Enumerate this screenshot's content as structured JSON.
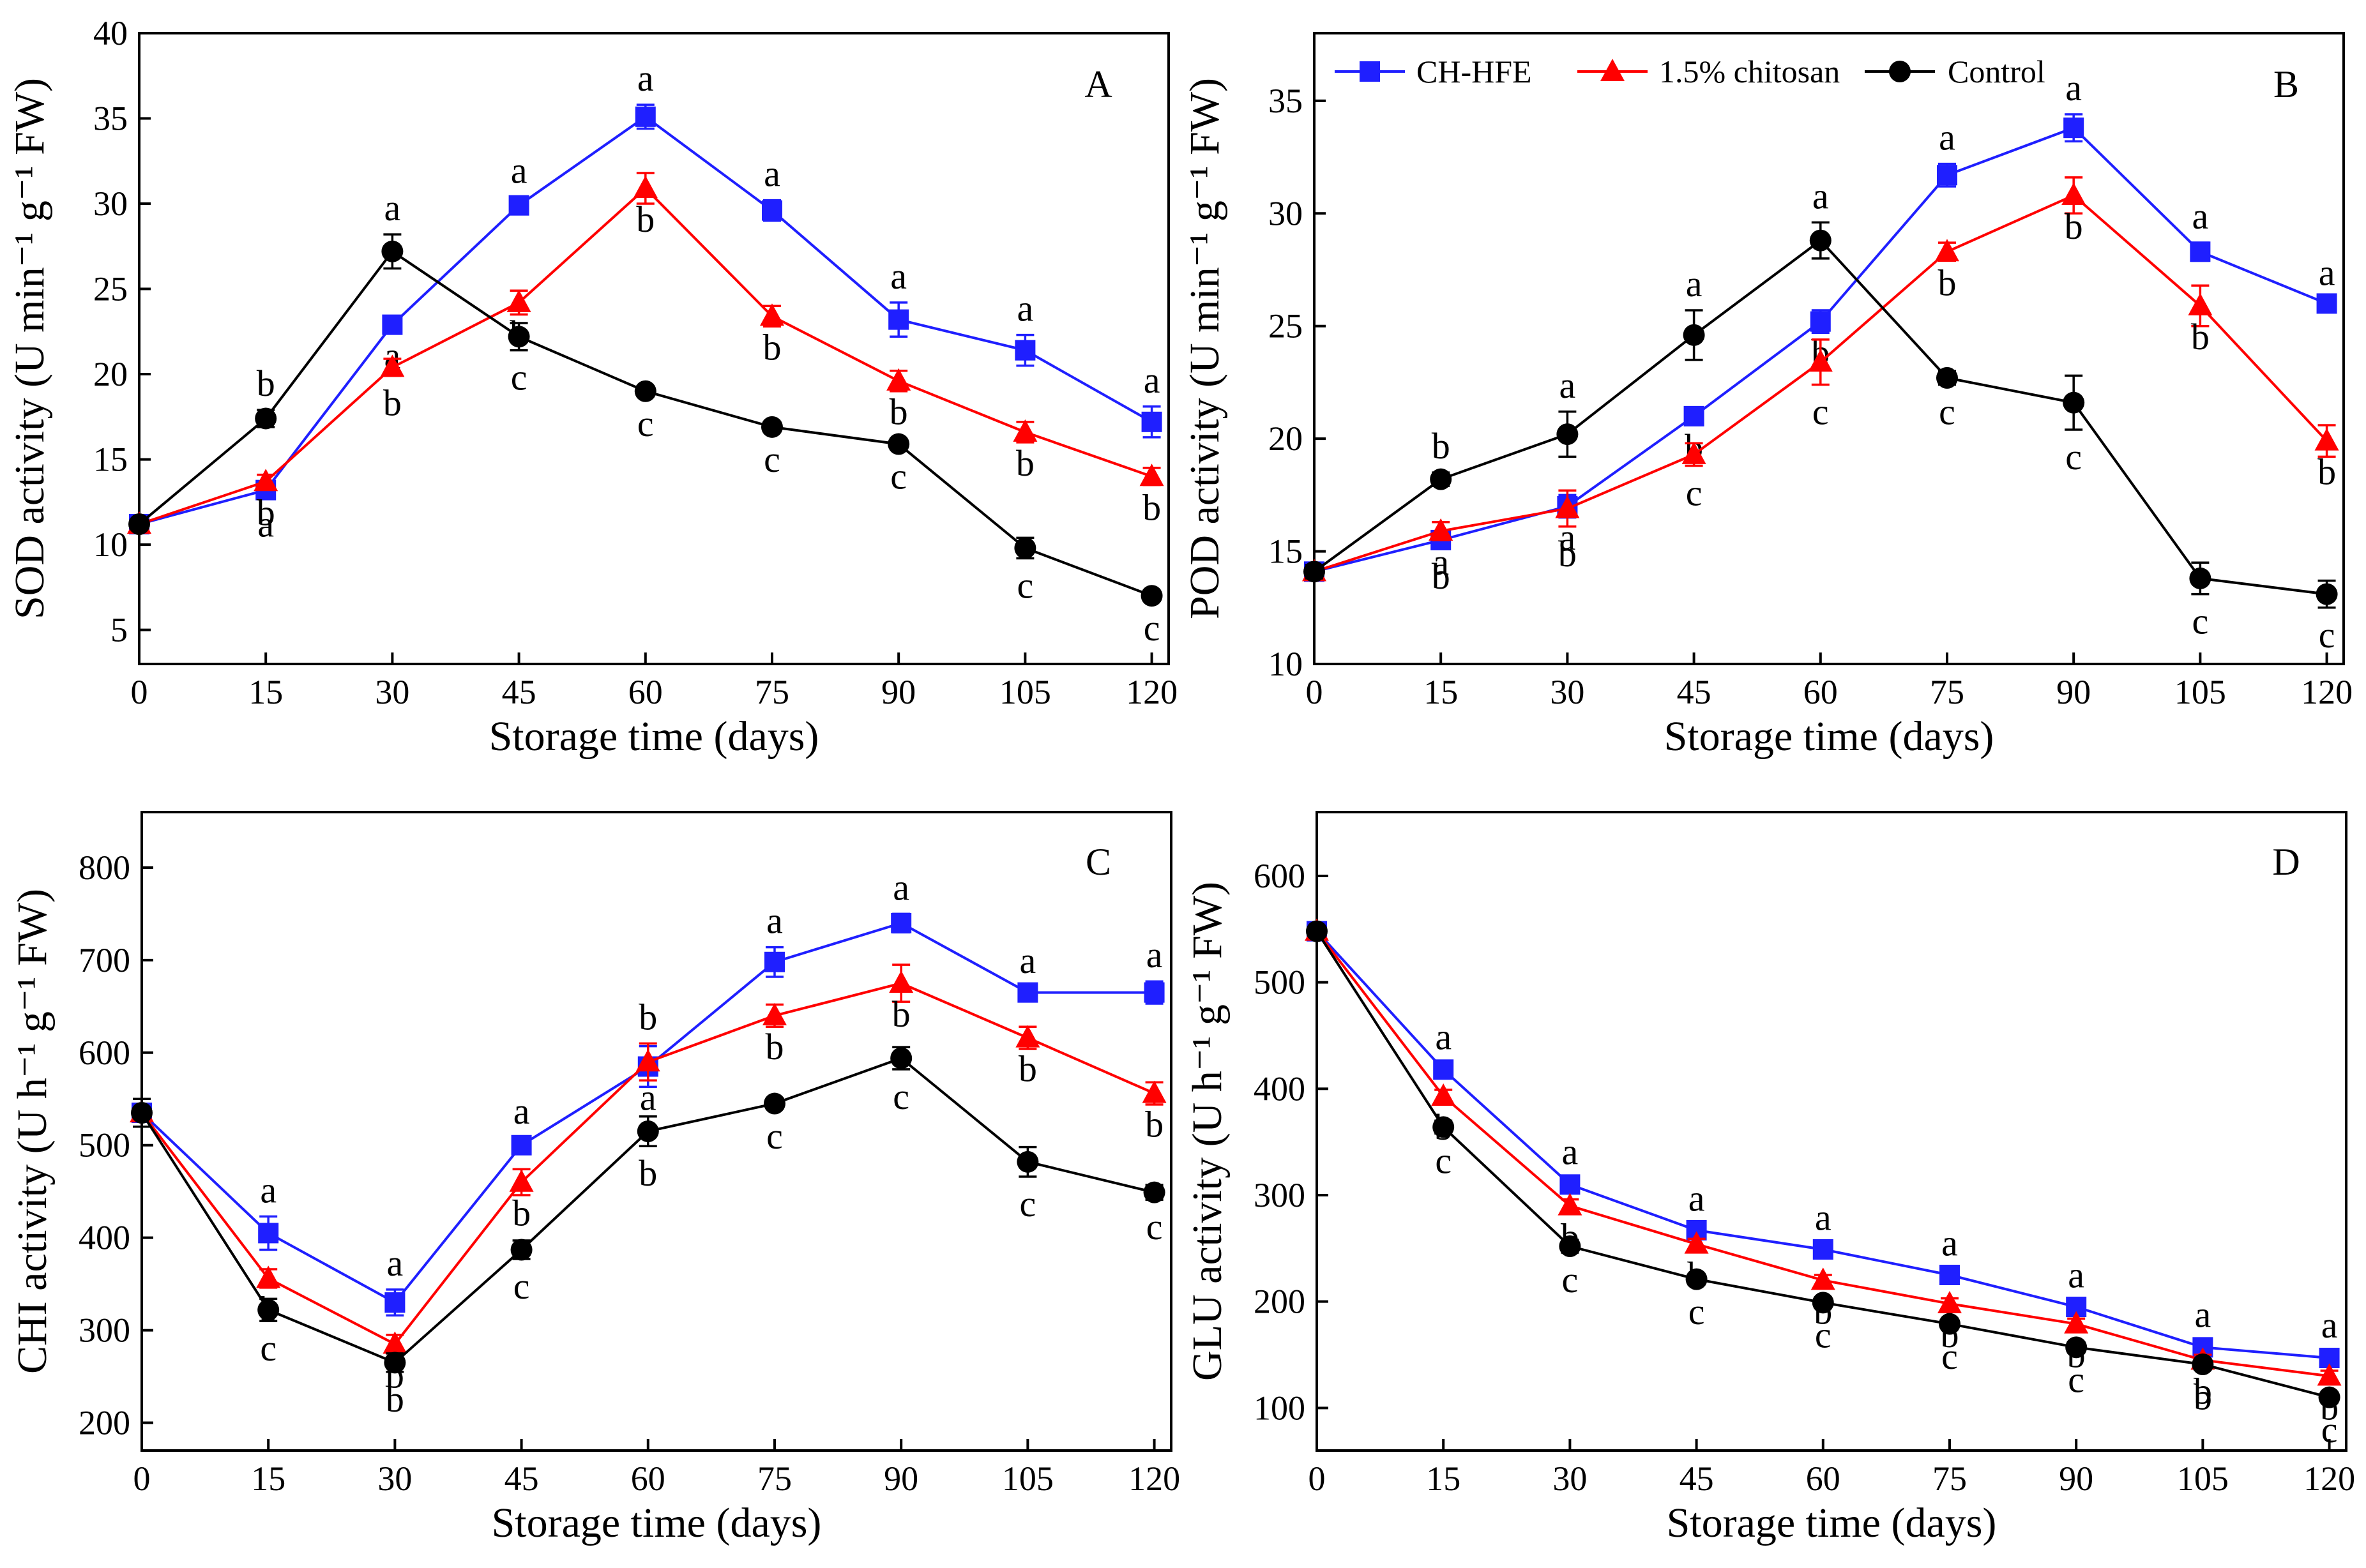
{
  "legend": {
    "entries": [
      {
        "key": "ch_hfe",
        "label": "CH-HFE"
      },
      {
        "key": "chitosan",
        "label": "1.5% chitosan"
      },
      {
        "key": "control",
        "label": "Control"
      }
    ]
  },
  "series_styles": {
    "ch_hfe": {
      "color": "#1f1fff",
      "marker": "square"
    },
    "chitosan": {
      "color": "#ff0000",
      "marker": "triangle"
    },
    "control": {
      "color": "#000000",
      "marker": "circle"
    }
  },
  "chart_data": [
    {
      "type": "line",
      "panel": "A",
      "xlabel": "Storage time (days)",
      "ylabel": "SOD activity (U min⁻¹ g⁻¹ FW)",
      "x": [
        0,
        15,
        30,
        45,
        60,
        75,
        90,
        105,
        120
      ],
      "xlim": [
        0,
        122
      ],
      "ylim": [
        3,
        40
      ],
      "xticks": [
        "0",
        "15",
        "30",
        "45",
        "60",
        "75",
        "90",
        "105",
        "120"
      ],
      "yticks": [
        "5",
        "10",
        "15",
        "20",
        "25",
        "30",
        "35",
        "40"
      ],
      "yticks_values": [
        5,
        10,
        15,
        20,
        25,
        30,
        35,
        40
      ],
      "series": [
        {
          "key": "ch_hfe",
          "name": "CH-HFE",
          "values": [
            11.2,
            13.2,
            22.9,
            29.9,
            35.1,
            29.6,
            23.2,
            21.4,
            17.2
          ],
          "errors": [
            0.3,
            0.4,
            0.5,
            0.5,
            0.7,
            0.6,
            1.0,
            0.9,
            0.9
          ],
          "letters": [
            "",
            "a",
            "a",
            "a",
            "a",
            "a",
            "a",
            "a",
            "a"
          ]
        },
        {
          "key": "chitosan",
          "name": "1.5% chitosan",
          "values": [
            11.2,
            13.7,
            20.4,
            24.2,
            30.9,
            23.4,
            19.6,
            16.6,
            14.0
          ],
          "errors": [
            0.3,
            0.4,
            0.5,
            0.7,
            0.9,
            0.6,
            0.6,
            0.6,
            0.5
          ],
          "letters": [
            "",
            "b",
            "b",
            "b",
            "b",
            "b",
            "b",
            "b",
            "b"
          ]
        },
        {
          "key": "control",
          "name": "Control",
          "values": [
            11.2,
            17.4,
            27.2,
            22.2,
            19.0,
            16.9,
            15.9,
            9.8,
            7.0
          ],
          "errors": [
            0.3,
            0.5,
            1.0,
            0.8,
            0.3,
            0.3,
            0.3,
            0.6,
            0.3
          ],
          "letters": [
            "",
            "b",
            "a",
            "c",
            "c",
            "c",
            "c",
            "c",
            "c"
          ]
        }
      ]
    },
    {
      "type": "line",
      "panel": "B",
      "xlabel": "Storage time (days)",
      "ylabel": "POD activity (U min⁻¹ g⁻¹ FW)",
      "x": [
        0,
        15,
        30,
        45,
        60,
        75,
        90,
        105,
        120
      ],
      "xlim": [
        0,
        122
      ],
      "ylim": [
        10,
        38
      ],
      "xticks": [
        "0",
        "15",
        "30",
        "45",
        "60",
        "75",
        "90",
        "105",
        "120"
      ],
      "yticks": [
        "10",
        "15",
        "20",
        "25",
        "30",
        "35"
      ],
      "yticks_values": [
        10,
        15,
        20,
        25,
        30,
        35
      ],
      "series": [
        {
          "key": "ch_hfe",
          "name": "CH-HFE",
          "values": [
            14.1,
            15.5,
            17.0,
            21.0,
            25.2,
            31.7,
            33.8,
            28.3,
            26.0
          ],
          "errors": [
            0.3,
            0.4,
            0.5,
            0.3,
            0.5,
            0.5,
            0.6,
            0.4,
            0.2
          ],
          "letters": [
            "",
            "b",
            "a",
            "b",
            "b",
            "a",
            "a",
            "a",
            "a"
          ]
        },
        {
          "key": "chitosan",
          "name": "1.5% chitosan",
          "values": [
            14.1,
            15.9,
            16.9,
            19.3,
            23.4,
            28.3,
            30.8,
            25.9,
            19.9
          ],
          "errors": [
            0.3,
            0.4,
            0.8,
            0.5,
            1.0,
            0.4,
            0.8,
            0.9,
            0.7
          ],
          "letters": [
            "",
            "a",
            "b",
            "c",
            "c",
            "b",
            "b",
            "b",
            "b"
          ]
        },
        {
          "key": "control",
          "name": "Control",
          "values": [
            14.1,
            18.2,
            20.2,
            24.6,
            28.8,
            22.7,
            21.6,
            13.8,
            13.1
          ],
          "errors": [
            0.3,
            0.3,
            1.0,
            1.1,
            0.8,
            0.3,
            1.2,
            0.7,
            0.6
          ],
          "letters": [
            "",
            "b",
            "a",
            "a",
            "a",
            "c",
            "c",
            "c",
            "c"
          ]
        }
      ]
    },
    {
      "type": "line",
      "panel": "C",
      "xlabel": "Storage time (days)",
      "ylabel": "CHI activity (U h⁻¹ g⁻¹ FW)",
      "x": [
        0,
        15,
        30,
        45,
        60,
        75,
        90,
        105,
        120
      ],
      "xlim": [
        0,
        122
      ],
      "ylim": [
        170,
        860
      ],
      "xticks": [
        "0",
        "15",
        "30",
        "45",
        "60",
        "75",
        "90",
        "105",
        "120"
      ],
      "yticks": [
        "200",
        "300",
        "400",
        "500",
        "600",
        "700",
        "800"
      ],
      "yticks_values": [
        200,
        300,
        400,
        500,
        600,
        700,
        800
      ],
      "series": [
        {
          "key": "ch_hfe",
          "name": "CH-HFE",
          "values": [
            535,
            405,
            330,
            500,
            585,
            698,
            740,
            665,
            665
          ],
          "errors": [
            15,
            18,
            14,
            8,
            22,
            16,
            10,
            6,
            12
          ],
          "letters": [
            "",
            "a",
            "a",
            "a",
            "a",
            "a",
            "a",
            "a",
            "a"
          ]
        },
        {
          "key": "chitosan",
          "name": "1.5% chitosan",
          "values": [
            535,
            356,
            285,
            460,
            590,
            640,
            675,
            616,
            556
          ],
          "errors": [
            15,
            10,
            10,
            14,
            20,
            12,
            20,
            12,
            12
          ],
          "letters": [
            "",
            "b",
            "b",
            "b",
            "b",
            "b",
            "b",
            "b",
            "b"
          ]
        },
        {
          "key": "control",
          "name": "Control",
          "values": [
            535,
            322,
            265,
            387,
            515,
            545,
            594,
            482,
            449
          ],
          "errors": [
            15,
            12,
            10,
            10,
            16,
            6,
            12,
            16,
            8
          ],
          "letters": [
            "",
            "c",
            "b",
            "c",
            "b",
            "c",
            "c",
            "c",
            "c"
          ]
        }
      ]
    },
    {
      "type": "line",
      "panel": "D",
      "xlabel": "Storage time (days)",
      "ylabel": "GLU activity (U h⁻¹ g⁻¹ FW)",
      "x": [
        0,
        15,
        30,
        45,
        60,
        75,
        90,
        105,
        120
      ],
      "xlim": [
        0,
        122
      ],
      "ylim": [
        60,
        660
      ],
      "xticks": [
        "0",
        "15",
        "30",
        "45",
        "60",
        "75",
        "90",
        "105",
        "120"
      ],
      "yticks": [
        "100",
        "200",
        "300",
        "400",
        "500",
        "600"
      ],
      "yticks_values": [
        100,
        200,
        300,
        400,
        500,
        600
      ],
      "series": [
        {
          "key": "ch_hfe",
          "name": "CH-HFE",
          "values": [
            548,
            418,
            310,
            267,
            249,
            225,
            195,
            157,
            147
          ],
          "errors": [
            5,
            6,
            6,
            5,
            5,
            5,
            5,
            6,
            6
          ],
          "letters": [
            "",
            "a",
            "a",
            "a",
            "a",
            "a",
            "a",
            "a",
            "a"
          ]
        },
        {
          "key": "chitosan",
          "name": "1.5% chitosan",
          "values": [
            548,
            393,
            290,
            254,
            220,
            198,
            179,
            145,
            130
          ],
          "errors": [
            5,
            6,
            6,
            5,
            5,
            5,
            5,
            5,
            5
          ],
          "letters": [
            "",
            "b",
            "b",
            "b",
            "b",
            "b",
            "b",
            "b",
            "b"
          ]
        },
        {
          "key": "control",
          "name": "Control",
          "values": [
            548,
            364,
            252,
            221,
            199,
            179,
            157,
            141,
            110
          ],
          "errors": [
            5,
            6,
            6,
            5,
            5,
            5,
            5,
            5,
            5
          ],
          "letters": [
            "",
            "c",
            "c",
            "c",
            "c",
            "c",
            "c",
            "b",
            "c"
          ]
        }
      ]
    }
  ]
}
